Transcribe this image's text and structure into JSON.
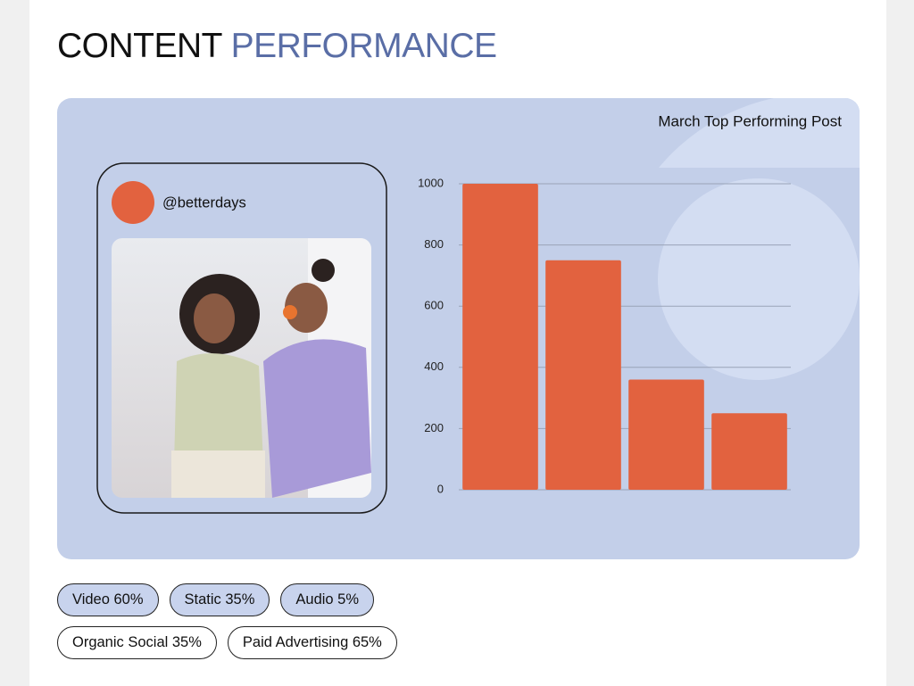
{
  "header": {
    "title_main": "CONTENT",
    "title_accent": "PERFORMANCE"
  },
  "post": {
    "handle": "@betterdays"
  },
  "chart_data": {
    "type": "bar",
    "title": "March Top Performing Post",
    "categories": [
      null,
      null,
      null,
      null
    ],
    "values": [
      1000,
      750,
      360,
      250
    ],
    "color": "#e2623f",
    "ylim": [
      0,
      1000
    ],
    "yticks": [
      0,
      200,
      400,
      600,
      800,
      1000
    ],
    "grid": true
  },
  "tags": [
    [
      "Video 60%",
      "Static 35%",
      "Audio 5%"
    ],
    [
      "Organic Social 35%",
      "Paid Advertising 65%"
    ]
  ]
}
